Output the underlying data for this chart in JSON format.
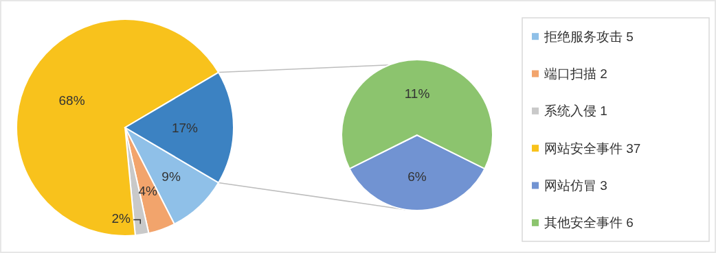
{
  "chart_data": [
    {
      "type": "pie",
      "categories": [
        "拒绝服务攻击 5",
        "端口扫描 2",
        "系统入侵 1",
        "网站安全事件 37",
        null
      ],
      "values": [
        9,
        4,
        2,
        68,
        17
      ],
      "value_labels": [
        "9%",
        "4%",
        "2%",
        "68%",
        "17%"
      ],
      "colors": [
        "#8fc0e8",
        "#f2a46c",
        "#c9c9c9",
        "#f8c21c",
        "#3c82c2"
      ],
      "legend": "right"
    },
    {
      "type": "pie",
      "categories": [
        "网站仿冒 3",
        "其他安全事件 6"
      ],
      "values": [
        6,
        11
      ],
      "value_labels": [
        "6%",
        "11%"
      ],
      "colors": [
        "#7193d2",
        "#8cc46e"
      ],
      "legend": "right"
    }
  ]
}
